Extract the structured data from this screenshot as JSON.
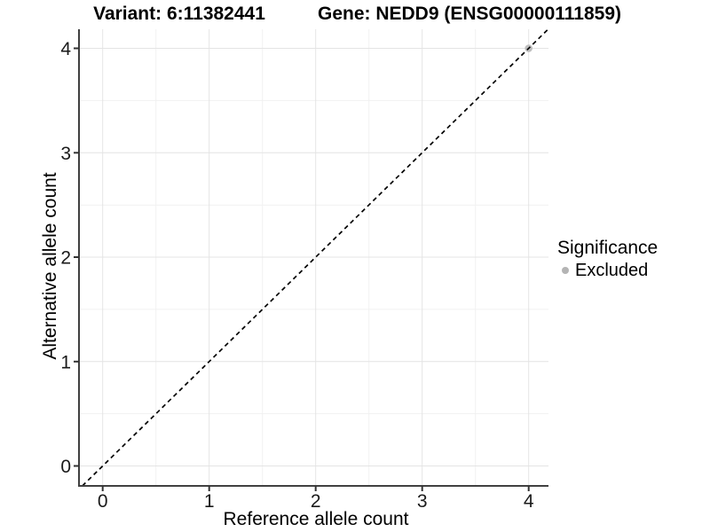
{
  "chart_data": {
    "type": "scatter",
    "titles": {
      "left": "Variant: 6:11382441",
      "right": "Gene: NEDD9 (ENSG00000111859)"
    },
    "xlabel": "Reference allele count",
    "ylabel": "Alternative allele count",
    "xlim": [
      -0.2225,
      4.186
    ],
    "ylim": [
      -0.191,
      4.183
    ],
    "x_ticks": [
      0,
      1,
      2,
      3,
      4
    ],
    "y_ticks": [
      0,
      1,
      2,
      3,
      4
    ],
    "x_minor": [
      0.5,
      1.5,
      2.5,
      3.5
    ],
    "y_minor": [
      0.5,
      1.5,
      2.5,
      3.5
    ],
    "grid": true,
    "identity_line": {
      "style": "dashed",
      "color": "#000000",
      "slope": 1,
      "intercept": 0
    },
    "series": [
      {
        "name": "Excluded",
        "color": "#bebebe",
        "points": [
          {
            "x": 4,
            "y": 4
          }
        ]
      }
    ],
    "legend": {
      "title": "Significance",
      "position": "right",
      "items": [
        {
          "label": "Excluded",
          "color": "#b4b4b4"
        }
      ]
    }
  },
  "colors": {
    "background": "#ffffff",
    "grid_major": "#e4e4e4",
    "grid_minor": "#f1f1f1",
    "axis_line": "#404040",
    "tick_mark": "#333333",
    "tick_label": "#1a1a1a",
    "title_text": "#000000"
  }
}
